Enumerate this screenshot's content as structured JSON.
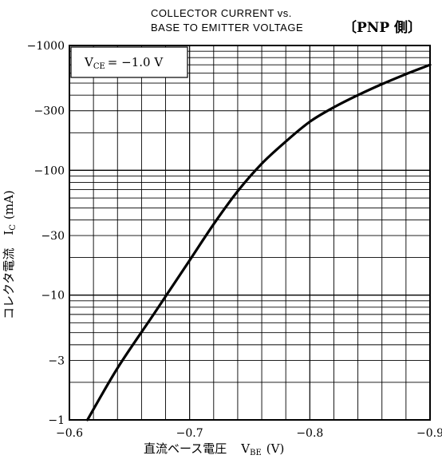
{
  "chart_data": {
    "type": "line",
    "title_line1": "COLLECTOR CURRENT vs.",
    "title_line2": "BASE TO EMITTER VOLTAGE",
    "subtitle": "〔PNP 側〕",
    "condition_label": "V",
    "condition_sub": "CE",
    "condition_value": "= −1.0 V",
    "xlabel": "直流ベース電圧",
    "xlabel_symbol": "V",
    "xlabel_sub": "BE",
    "xlabel_unit": "(V)",
    "ylabel": "コレクタ電流",
    "ylabel_symbol": "I",
    "ylabel_sub": "C",
    "ylabel_unit": "(mA)",
    "x_axis": {
      "range": [
        -0.6,
        -0.9
      ],
      "ticks": [
        -0.6,
        -0.7,
        -0.8,
        -0.9
      ],
      "tick_labels": [
        "−0.6",
        "−0.7",
        "−0.8",
        "−0.9"
      ],
      "minor_step": 0.02
    },
    "y_axis": {
      "scale": "log",
      "range": [
        -1,
        -1000
      ],
      "ticks": [
        -1,
        -3,
        -10,
        -30,
        -100,
        -300,
        -1000
      ],
      "tick_labels": [
        "−1",
        "−3",
        "−10",
        "−30",
        "−100",
        "−300",
        "−1000"
      ],
      "minor": [
        2,
        3,
        4,
        5,
        6,
        7,
        8,
        9
      ]
    },
    "grid": true,
    "series": [
      {
        "name": "",
        "color": "#000000",
        "x": [
          -0.615,
          -0.64,
          -0.67,
          -0.7,
          -0.72,
          -0.74,
          -0.76,
          -0.78,
          -0.8,
          -0.82,
          -0.84,
          -0.86,
          -0.88,
          -0.9
        ],
        "y": [
          -1,
          -2.6,
          -7,
          -19,
          -37,
          -68,
          -113,
          -170,
          -245,
          -320,
          -400,
          -490,
          -590,
          -700
        ]
      }
    ]
  }
}
